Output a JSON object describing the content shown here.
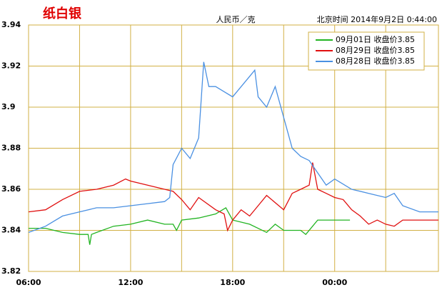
{
  "chart_data": {
    "type": "line",
    "title": "纸白银",
    "unit_label": "人民币／克",
    "timestamp": "北京时间 2014年9月2日 0:44:00",
    "xlim": [
      0,
      24.1
    ],
    "xticks": [
      {
        "value": 0,
        "label": "06:00"
      },
      {
        "value": 6,
        "label": "12:00"
      },
      {
        "value": 12,
        "label": "18:00"
      },
      {
        "value": 18,
        "label": "00:00"
      }
    ],
    "x_minor_ticks": [
      3,
      9,
      15,
      21
    ],
    "ylim": [
      3.82,
      3.94
    ],
    "yticks": [
      3.82,
      3.84,
      3.86,
      3.88,
      3.9,
      3.92,
      3.94
    ],
    "grid": true,
    "legend": "upper right",
    "series": [
      {
        "name": "09月01日 收盘价3.85",
        "color": "#22b422",
        "x": [
          0,
          1,
          2,
          3,
          3.5,
          3.6,
          3.7,
          4,
          5,
          6,
          7,
          8,
          8.5,
          8.7,
          9,
          10,
          11,
          11.6,
          12,
          13,
          14,
          14.5,
          15,
          16,
          16.3,
          16.7,
          17,
          18,
          18.9
        ],
        "values": [
          3.841,
          3.841,
          3.839,
          3.838,
          3.838,
          3.833,
          3.838,
          3.839,
          3.842,
          3.843,
          3.845,
          3.843,
          3.843,
          3.84,
          3.845,
          3.846,
          3.848,
          3.851,
          3.845,
          3.843,
          3.839,
          3.843,
          3.84,
          3.84,
          3.838,
          3.842,
          3.845,
          3.845,
          3.845
        ]
      },
      {
        "name": "08月29日 收盘价3.85",
        "color": "#e01010",
        "x": [
          0,
          1,
          2,
          3,
          4,
          5,
          5.7,
          6,
          7,
          8,
          8.5,
          9,
          9.5,
          10,
          11,
          11.5,
          11.7,
          12,
          12.5,
          13,
          13.5,
          14,
          15,
          15.5,
          16,
          16.5,
          16.7,
          17,
          17.5,
          18,
          18.5,
          19,
          19.5,
          20,
          20.5,
          21,
          21.5,
          22,
          24.1
        ],
        "values": [
          3.849,
          3.85,
          3.855,
          3.859,
          3.86,
          3.862,
          3.865,
          3.864,
          3.862,
          3.86,
          3.859,
          3.855,
          3.85,
          3.856,
          3.85,
          3.848,
          3.84,
          3.845,
          3.85,
          3.847,
          3.852,
          3.857,
          3.85,
          3.858,
          3.86,
          3.862,
          3.873,
          3.86,
          3.858,
          3.856,
          3.855,
          3.85,
          3.847,
          3.843,
          3.845,
          3.843,
          3.842,
          3.845,
          3.845
        ]
      },
      {
        "name": "08月28日 收盘价3.85",
        "color": "#4a90e2",
        "x": [
          0,
          1,
          2,
          3,
          4,
          5,
          6,
          7,
          8,
          8.3,
          8.5,
          9,
          9.5,
          10,
          10.3,
          10.6,
          11,
          12,
          13,
          13.3,
          13.5,
          14,
          14.5,
          15,
          15.5,
          16,
          16.5,
          17,
          17.5,
          18,
          19,
          20,
          21,
          21.5,
          22,
          23,
          24.1
        ],
        "values": [
          3.839,
          3.842,
          3.847,
          3.849,
          3.851,
          3.851,
          3.852,
          3.853,
          3.854,
          3.856,
          3.872,
          3.88,
          3.875,
          3.885,
          3.922,
          3.91,
          3.91,
          3.905,
          3.915,
          3.918,
          3.905,
          3.9,
          3.91,
          3.895,
          3.88,
          3.876,
          3.874,
          3.868,
          3.862,
          3.865,
          3.86,
          3.858,
          3.856,
          3.858,
          3.852,
          3.849,
          3.849
        ]
      }
    ]
  }
}
